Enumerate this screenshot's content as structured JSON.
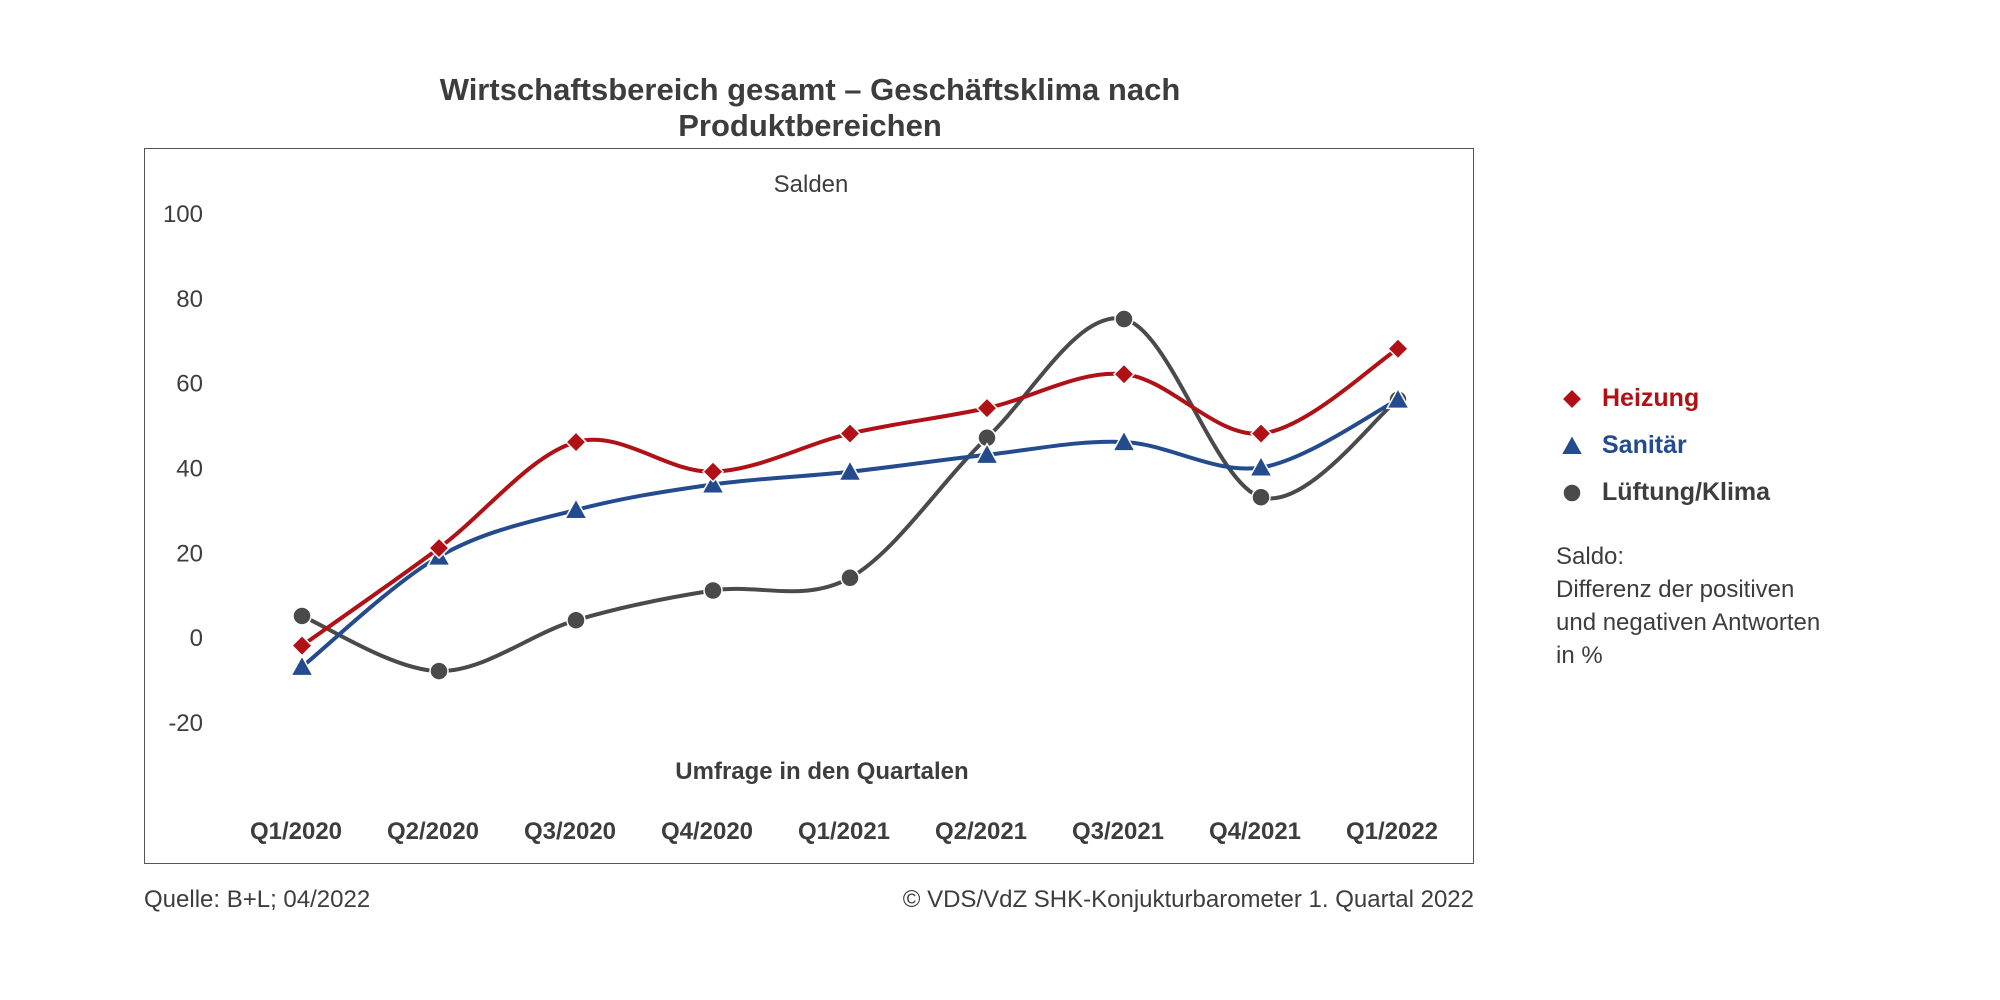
{
  "chart_data": {
    "type": "line",
    "title": "Wirtschaftsbereich gesamt – Geschäftsklima nach Produktbereichen",
    "ylabel": "Salden",
    "xlabel": "Umfrage in den Quartalen",
    "categories": [
      "Q1/2020",
      "Q2/2020",
      "Q3/2020",
      "Q4/2020",
      "Q1/2021",
      "Q2/2021",
      "Q3/2021",
      "Q4/2021",
      "Q1/2022"
    ],
    "ylim": [
      -20,
      100
    ],
    "yticks": [
      "100",
      "80",
      "60",
      "40",
      "20",
      "0",
      "-20"
    ],
    "grid": false,
    "legend_position": "right",
    "series": [
      {
        "name": "Heizung",
        "color": "#b01117",
        "marker": "diamond",
        "values": [
          -2,
          21,
          46,
          39,
          48,
          54,
          62,
          48,
          68
        ]
      },
      {
        "name": "Sanitär",
        "color": "#234b8e",
        "marker": "triangle",
        "values": [
          -7,
          19,
          30,
          36,
          39,
          43,
          46,
          40,
          56
        ]
      },
      {
        "name": "Lüftung/Klima",
        "color": "#4a4a4a",
        "marker": "circle",
        "values": [
          5,
          -8,
          4,
          11,
          14,
          47,
          75,
          33,
          56
        ]
      }
    ]
  },
  "legend_note": [
    "Saldo:",
    "Differenz der positiven",
    "und negativen Antworten",
    "in %"
  ],
  "footer": {
    "source": "Quelle: B+L; 04/2022",
    "copyright": "© VDS/VdZ SHK-Konjukturbarometer 1. Quartal 2022"
  }
}
